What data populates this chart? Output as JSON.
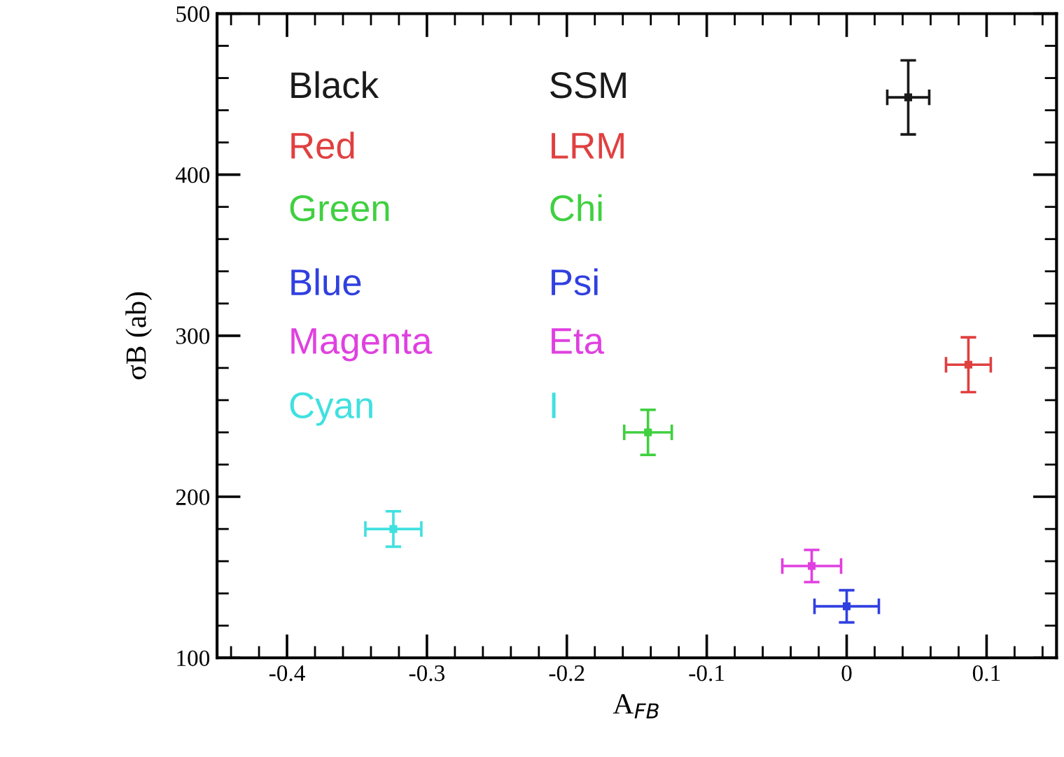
{
  "chart_data": {
    "type": "scatter",
    "xlabel": "A$_{FB}$",
    "ylabel": "σB (ab)",
    "xlim": [
      -0.45,
      0.15
    ],
    "xticks": [
      -0.4,
      -0.3,
      -0.2,
      -0.1,
      0,
      0.1
    ],
    "ylim": [
      100,
      500
    ],
    "yticks": [
      100,
      200,
      300,
      400,
      500
    ],
    "grid": false,
    "annotations": [
      "Black",
      "Red",
      "Green",
      "Blue",
      "Magenta",
      "Cyan"
    ],
    "series": [
      {
        "name": "SSM",
        "color": "#1a1a1a",
        "x": [
          0.044
        ],
        "values": [
          448
        ],
        "errors": [
          23
        ],
        "xerrors": [
          0.015
        ]
      },
      {
        "name": "LRM",
        "color": "#e04040",
        "x": [
          0.087
        ],
        "values": [
          282
        ],
        "errors": [
          17
        ],
        "xerrors": [
          0.016
        ]
      },
      {
        "name": "Chi",
        "color": "#40d040",
        "x": [
          -0.142
        ],
        "values": [
          240
        ],
        "errors": [
          14
        ],
        "xerrors": [
          0.017
        ]
      },
      {
        "name": "Psi",
        "color": "#3040e0",
        "x": [
          0.0
        ],
        "values": [
          132
        ],
        "errors": [
          10
        ],
        "xerrors": [
          0.023
        ]
      },
      {
        "name": "Eta",
        "color": "#e040e0",
        "x": [
          -0.025
        ],
        "values": [
          157
        ],
        "errors": [
          10
        ],
        "xerrors": [
          0.021
        ]
      },
      {
        "name": "I",
        "color": "#40e0e0",
        "x": [
          -0.324
        ],
        "values": [
          180
        ],
        "errors": [
          11
        ],
        "xerrors": [
          0.02
        ]
      }
    ]
  }
}
